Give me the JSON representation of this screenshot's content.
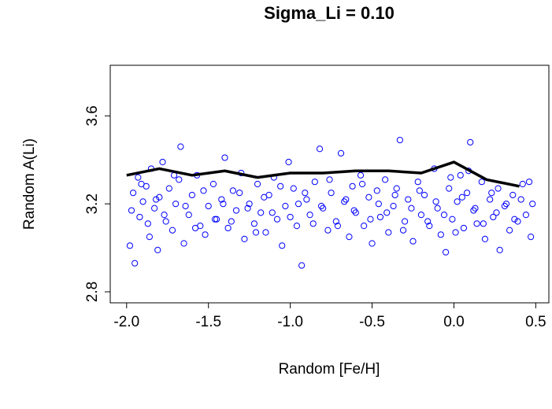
{
  "chart_data": {
    "type": "scatter",
    "title": "Sigma_Li = 0.10",
    "x_label": "Random [Fe/H]",
    "y_label": "Random A(Li)",
    "xlim": [
      -2.1,
      0.58
    ],
    "ylim": [
      2.75,
      3.83
    ],
    "xticks": [
      {
        "value": -2,
        "label": "-2.0"
      },
      -1.5,
      {
        "value": -1,
        "label": "-1.0"
      },
      -0.5,
      {
        "value": 0,
        "label": "0.0"
      },
      0.5
    ],
    "yticks": [
      2.8,
      3.2,
      3.6
    ],
    "series": [
      {
        "mode": "markers",
        "color": "#0000ff",
        "x": [
          -1.98,
          -1.96,
          -1.95,
          -1.93,
          -1.92,
          -1.9,
          -1.88,
          -1.86,
          -1.85,
          -1.83,
          -1.81,
          -1.8,
          -1.78,
          -1.76,
          -1.74,
          -1.72,
          -1.7,
          -1.68,
          -1.67,
          -1.65,
          -1.62,
          -1.6,
          -1.57,
          -1.55,
          -1.52,
          -1.5,
          -1.47,
          -1.45,
          -1.42,
          -1.4,
          -1.38,
          -1.35,
          -1.33,
          -1.3,
          -1.28,
          -1.25,
          -1.22,
          -1.2,
          -1.18,
          -1.15,
          -1.13,
          -1.1,
          -1.08,
          -1.05,
          -1.03,
          -1.01,
          -0.98,
          -0.96,
          -0.93,
          -0.9,
          -0.88,
          -0.85,
          -0.82,
          -0.8,
          -0.77,
          -0.75,
          -0.72,
          -0.69,
          -0.67,
          -0.64,
          -0.62,
          -0.6,
          -0.57,
          -0.55,
          -0.52,
          -0.5,
          -0.47,
          -0.45,
          -0.42,
          -0.4,
          -0.37,
          -0.35,
          -0.33,
          -0.3,
          -0.28,
          -0.25,
          -0.22,
          -0.2,
          -0.18,
          -0.15,
          -0.12,
          -0.1,
          -0.08,
          -0.05,
          -0.03,
          -0.01,
          0.02,
          0.04,
          0.06,
          0.08,
          0.1,
          0.12,
          0.14,
          0.17,
          0.19,
          0.22,
          0.24,
          0.27,
          0.28,
          0.31,
          0.34,
          0.36,
          0.39,
          0.42,
          0.44,
          0.47,
          0.48,
          -1.97,
          -1.91,
          -1.87,
          -1.82,
          -1.77,
          -1.71,
          -1.64,
          -1.58,
          -1.53,
          -1.46,
          -1.41,
          -1.36,
          -1.31,
          -1.26,
          -1.21,
          -1.16,
          -1.11,
          -1.06,
          -1.0,
          -0.95,
          -0.91,
          -0.86,
          -0.81,
          -0.76,
          -0.71,
          -0.66,
          -0.61,
          -0.56,
          -0.51,
          -0.46,
          -0.41,
          -0.36,
          -0.31,
          -0.26,
          -0.21,
          -0.16,
          -0.11,
          -0.06,
          -0.02,
          0.01,
          0.05,
          0.09,
          0.13,
          0.18,
          0.23,
          0.26,
          0.32,
          0.37,
          0.41,
          0.46
        ],
        "values": [
          3.01,
          3.25,
          2.93,
          3.32,
          3.14,
          3.21,
          3.28,
          3.05,
          3.36,
          3.18,
          2.99,
          3.23,
          3.39,
          3.12,
          3.27,
          3.08,
          3.2,
          3.31,
          3.46,
          3.02,
          3.15,
          3.24,
          3.33,
          3.1,
          3.06,
          3.19,
          3.29,
          3.13,
          3.22,
          3.41,
          3.09,
          3.26,
          3.17,
          3.34,
          3.04,
          3.2,
          3.11,
          3.29,
          3.16,
          3.07,
          3.24,
          3.32,
          3.13,
          3.01,
          3.19,
          3.39,
          3.27,
          3.1,
          2.92,
          3.22,
          3.15,
          3.3,
          3.45,
          3.18,
          3.08,
          3.25,
          3.12,
          3.43,
          3.21,
          3.05,
          3.28,
          3.16,
          3.33,
          3.1,
          3.23,
          3.02,
          3.26,
          3.14,
          3.31,
          3.07,
          3.19,
          3.27,
          3.49,
          3.12,
          3.22,
          3.03,
          3.3,
          3.15,
          3.24,
          3.1,
          3.36,
          3.18,
          3.06,
          2.98,
          3.27,
          3.13,
          3.21,
          3.33,
          3.09,
          3.25,
          3.48,
          3.17,
          3.11,
          3.3,
          3.04,
          3.22,
          3.14,
          3.27,
          2.99,
          3.19,
          3.08,
          3.24,
          3.12,
          3.29,
          3.15,
          3.05,
          3.2,
          3.17,
          3.29,
          3.11,
          3.22,
          3.15,
          3.33,
          3.19,
          3.09,
          3.26,
          3.13,
          3.2,
          3.12,
          3.25,
          3.18,
          3.07,
          3.23,
          3.16,
          3.28,
          3.14,
          3.2,
          3.25,
          3.11,
          3.19,
          3.31,
          3.1,
          3.22,
          3.17,
          3.29,
          3.13,
          3.2,
          3.16,
          3.24,
          3.08,
          3.18,
          3.26,
          3.12,
          3.21,
          3.15,
          3.32,
          3.07,
          3.23,
          3.35,
          3.18,
          3.11,
          3.25,
          3.16,
          3.2,
          3.13,
          3.22,
          3.3
        ]
      },
      {
        "mode": "lines",
        "color": "#000000",
        "x": [
          -2.0,
          -1.8,
          -1.6,
          -1.4,
          -1.2,
          -1.0,
          -0.8,
          -0.6,
          -0.4,
          -0.2,
          0.0,
          0.2,
          0.4
        ],
        "values": [
          3.33,
          3.36,
          3.33,
          3.35,
          3.32,
          3.34,
          3.34,
          3.35,
          3.35,
          3.34,
          3.39,
          3.31,
          3.28
        ]
      }
    ]
  }
}
